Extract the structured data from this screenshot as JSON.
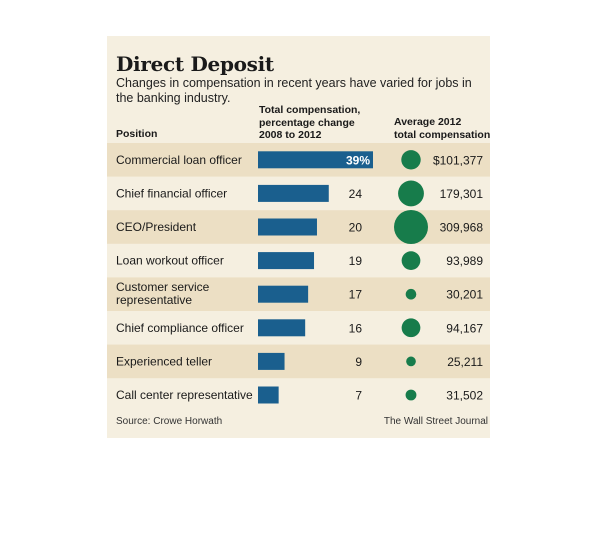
{
  "title": "Direct Deposit",
  "subtitle": "Changes in compensation in recent years have varied for jobs in the banking industry.",
  "headers": {
    "position": "Position",
    "total_change": "Total compensation,\npercentage change\n2008 to 2012",
    "avg_2012": "Average 2012\ntotal compensation"
  },
  "footer": {
    "source": "Source: Crowe Horwath",
    "credit": "The Wall Street Journal"
  },
  "colors": {
    "bar": "#1a5f8e",
    "circle": "#177c4b",
    "stripe": "#ecdfc4",
    "background": "#f5efe0"
  },
  "chart_data": {
    "type": "table",
    "columns": [
      "Position",
      "Total compensation, percentage change 2008 to 2012",
      "Average 2012 total compensation"
    ],
    "rows": [
      {
        "position": "Commercial loan officer",
        "pct_change": 39,
        "pct_label": "39%",
        "avg_comp": 101377,
        "avg_label": "$101,377"
      },
      {
        "position": "Chief financial officer",
        "pct_change": 24,
        "pct_label": "24",
        "avg_comp": 179301,
        "avg_label": "179,301"
      },
      {
        "position": "CEO/President",
        "pct_change": 20,
        "pct_label": "20",
        "avg_comp": 309968,
        "avg_label": "309,968"
      },
      {
        "position": "Loan workout officer",
        "pct_change": 19,
        "pct_label": "19",
        "avg_comp": 93989,
        "avg_label": "93,989"
      },
      {
        "position": "Customer service representative",
        "pct_change": 17,
        "pct_label": "17",
        "avg_comp": 30201,
        "avg_label": "30,201"
      },
      {
        "position": "Chief compliance officer",
        "pct_change": 16,
        "pct_label": "16",
        "avg_comp": 94167,
        "avg_label": "94,167"
      },
      {
        "position": "Experienced teller",
        "pct_change": 9,
        "pct_label": "9",
        "avg_comp": 25211,
        "avg_label": "25,211"
      },
      {
        "position": "Call center representative",
        "pct_change": 7,
        "pct_label": "7",
        "avg_comp": 31502,
        "avg_label": "31,502"
      }
    ]
  }
}
